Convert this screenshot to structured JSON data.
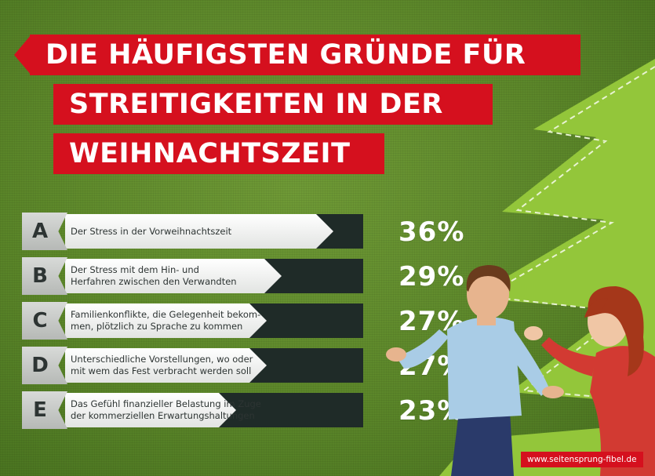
{
  "title": {
    "lines": [
      "DIE HÄUFIGSTEN GRÜNDE FÜR",
      "STREITIGKEITEN IN DER",
      "WEIHNACHTSZEIT"
    ]
  },
  "chart_data": {
    "type": "bar",
    "categories": [
      "A",
      "B",
      "C",
      "D",
      "E"
    ],
    "labels": [
      "Der Stress in der Vorweihnachtszeit",
      "Der Stress mit dem Hin- und Herfahren zwischen den Verwandten",
      "Familienkonflikte, die Gelegenheit bekommen, plötzlich zu Sprache zu kommen",
      "Unterschiedliche Vorstellungen, wo oder mit wem das Fest verbracht werden soll",
      "Das Gefühl finanzieller Belastung im Zuge der kommerziellen Erwartungshaltungen"
    ],
    "label_lines": [
      [
        "Der Stress in der Vorweihnachtszeit"
      ],
      [
        "Der Stress mit dem Hin- und",
        "Herfahren zwischen den Verwandten"
      ],
      [
        "Familienkonflikte, die Gelegenheit bekom-",
        "men, plötzlich zu Sprache zu kommen"
      ],
      [
        "Unterschiedliche Vorstellungen, wo oder",
        "mit wem das Fest verbracht werden soll"
      ],
      [
        "Das Gefühl finanzieller Belastung im Zuge",
        "der kommerziellen Erwartungshaltungen"
      ]
    ],
    "values": [
      36,
      29,
      27,
      27,
      23
    ],
    "value_labels": [
      "36%",
      "29%",
      "27%",
      "27%",
      "23%"
    ],
    "xlim": [
      0,
      40
    ],
    "grid": false
  },
  "footer": {
    "url": "www.seitensprung-fibel.de"
  },
  "colors": {
    "background": "#5e8a2c",
    "title_red": "#d5101e",
    "tree_green": "#93c63a",
    "dark_bar": "#1f2b28",
    "bar_light": "#ffffff",
    "label_grey": "#c8cac8"
  }
}
